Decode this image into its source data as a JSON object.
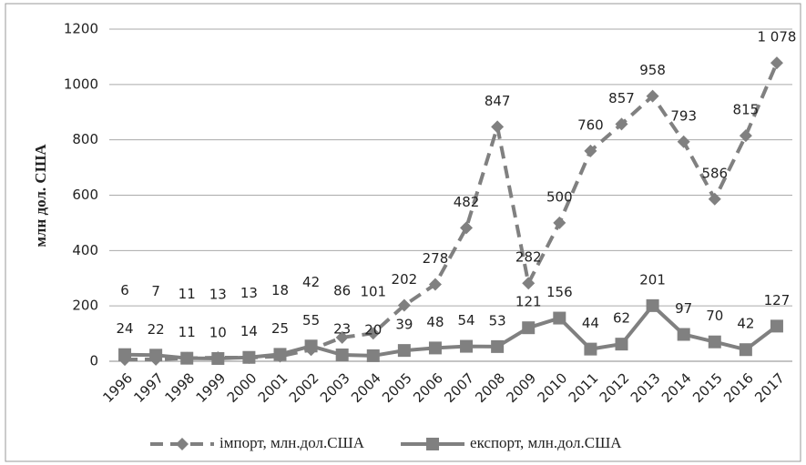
{
  "chart_data": {
    "type": "line",
    "y_axis_label": "млн дол. США",
    "categories": [
      "1996",
      "1997",
      "1998",
      "1999",
      "2000",
      "2001",
      "2002",
      "2003",
      "2004",
      "2005",
      "2006",
      "2007",
      "2008",
      "2009",
      "2010",
      "2011",
      "2012",
      "2013",
      "2014",
      "2015",
      "2016",
      "2017"
    ],
    "series": [
      {
        "name": "імпорт, млн.дол.США",
        "color": "#808080",
        "dash": true,
        "marker": "diamond",
        "values": [
          6,
          7,
          11,
          13,
          13,
          18,
          42,
          86,
          101,
          202,
          278,
          482,
          847,
          282,
          500,
          760,
          857,
          958,
          793,
          586,
          815,
          1078
        ],
        "value_labels": [
          "6",
          "7",
          "11",
          "13",
          "13",
          "18",
          "42",
          "86",
          "101",
          "202",
          "278",
          "482",
          "847",
          "282",
          "500",
          "760",
          "857",
          "958",
          "793",
          "586",
          "815",
          "1 078"
        ]
      },
      {
        "name": "експорт, млн.дол.США",
        "color": "#808080",
        "dash": false,
        "marker": "square",
        "values": [
          24,
          22,
          11,
          10,
          14,
          25,
          55,
          23,
          20,
          39,
          48,
          54,
          53,
          121,
          156,
          44,
          62,
          201,
          97,
          70,
          42,
          127
        ]
      }
    ],
    "ylim": [
      0,
      1200
    ],
    "yticks": [
      0,
      200,
      400,
      600,
      800,
      1000,
      1200
    ],
    "grid": true
  }
}
